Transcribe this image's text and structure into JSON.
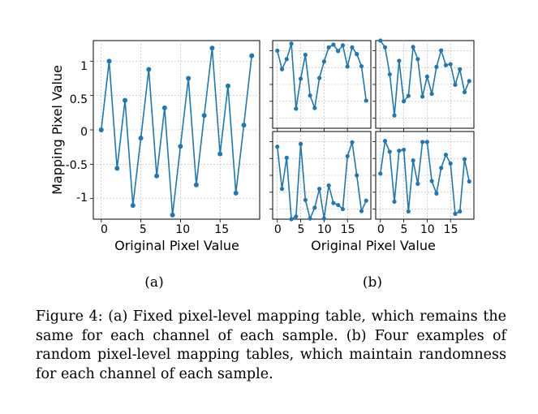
{
  "chart_data": [
    {
      "type": "line",
      "panel": "a",
      "xlabel": "Original Pixel Value",
      "ylabel": "Mapping Pixel Value",
      "xlim": [
        -1,
        20
      ],
      "ylim": [
        -1.3,
        1.3
      ],
      "xticks": [
        0,
        5,
        10,
        15
      ],
      "yticks": [
        1,
        0.5,
        0,
        -0.5,
        -1
      ],
      "ytick_labels": [
        "1",
        "0.5",
        "0",
        "-0.5",
        "-1"
      ],
      "grid": true,
      "color": "#1f77b4",
      "x": [
        0,
        1,
        2,
        3,
        4,
        5,
        6,
        7,
        8,
        9,
        10,
        11,
        12,
        13,
        14,
        15,
        16,
        17,
        18,
        19
      ],
      "y": [
        0,
        1.0,
        -0.56,
        0.43,
        -1.1,
        -0.12,
        0.88,
        -0.67,
        0.32,
        -1.24,
        -0.24,
        0.75,
        -0.8,
        0.21,
        1.19,
        -0.35,
        0.64,
        -0.92,
        0.07,
        1.08
      ]
    },
    {
      "type": "line",
      "panel": "b1",
      "xlim": [
        -1,
        20
      ],
      "ylim": [
        -1.3,
        1.3
      ],
      "grid": true,
      "color": "#1f77b4",
      "x": [
        0,
        1,
        2,
        3,
        4,
        5,
        6,
        7,
        8,
        9,
        10,
        11,
        12,
        13,
        14,
        15,
        16,
        17,
        18,
        19
      ],
      "y": [
        1.0,
        0.45,
        0.75,
        1.21,
        -0.72,
        0.17,
        0.88,
        -0.33,
        -0.7,
        0.19,
        0.68,
        1.1,
        1.18,
        0.99,
        1.16,
        0.53,
        1.1,
        0.9,
        0.54,
        -0.48
      ]
    },
    {
      "type": "line",
      "panel": "b2",
      "xlim": [
        -1,
        20
      ],
      "ylim": [
        -1.3,
        1.3
      ],
      "grid": true,
      "color": "#1f77b4",
      "x": [
        0,
        1,
        2,
        3,
        4,
        5,
        6,
        7,
        8,
        9,
        10,
        11,
        12,
        13,
        14,
        15,
        16,
        17,
        18,
        19
      ],
      "y": [
        1.3,
        1.1,
        0.3,
        -0.92,
        0.7,
        -0.5,
        -0.34,
        1.11,
        0.75,
        -0.36,
        0.23,
        -0.28,
        0.52,
        1.01,
        0.57,
        0.6,
        -0.01,
        0.45,
        -0.23,
        0.1
      ]
    },
    {
      "type": "line",
      "panel": "b3",
      "xticks": [
        0,
        5,
        10,
        15
      ],
      "xlim": [
        -1,
        20
      ],
      "ylim": [
        -1.3,
        1.3
      ],
      "grid": true,
      "color": "#1f77b4",
      "x": [
        0,
        1,
        2,
        3,
        4,
        5,
        6,
        7,
        8,
        9,
        10,
        11,
        12,
        13,
        14,
        15,
        16,
        17,
        18,
        19
      ],
      "y": [
        0.85,
        -0.4,
        0.52,
        -1.3,
        -1.22,
        0.93,
        -0.73,
        -1.28,
        -0.96,
        -0.4,
        -1.28,
        -0.3,
        -0.82,
        -0.88,
        -1.0,
        0.57,
        0.98,
        0.0,
        -1.06,
        -0.75
      ]
    },
    {
      "type": "line",
      "panel": "b4",
      "xticks": [
        0,
        5,
        10,
        15
      ],
      "xlim": [
        -1,
        20
      ],
      "ylim": [
        -1.3,
        1.3
      ],
      "grid": true,
      "color": "#1f77b4",
      "x": [
        0,
        1,
        2,
        3,
        4,
        5,
        6,
        7,
        8,
        9,
        10,
        11,
        12,
        13,
        14,
        15,
        16,
        17,
        18,
        19
      ],
      "y": [
        0.05,
        1.02,
        0.7,
        -0.78,
        0.73,
        0.76,
        -1.07,
        0.44,
        -0.25,
        0.99,
        0.99,
        -0.17,
        -0.54,
        0.22,
        0.61,
        0.35,
        -1.14,
        -1.07,
        0.48,
        -0.18
      ]
    }
  ],
  "subfigure_labels": [
    "(a)",
    "(b)"
  ],
  "caption": "Figure 4: (a) Fixed pixel-level mapping table, which remains the same for each channel of each sample. (b) Four examples of random pixel-level mapping tables, which maintain randomness for each channel of each sample."
}
